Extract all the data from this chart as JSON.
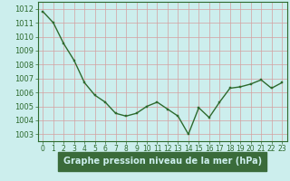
{
  "x": [
    0,
    1,
    2,
    3,
    4,
    5,
    6,
    7,
    8,
    9,
    10,
    11,
    12,
    13,
    14,
    15,
    16,
    17,
    18,
    19,
    20,
    21,
    22,
    23
  ],
  "y": [
    1011.8,
    1011.0,
    1009.5,
    1008.3,
    1006.7,
    1005.8,
    1005.3,
    1004.5,
    1004.3,
    1004.5,
    1005.0,
    1005.3,
    1004.8,
    1004.3,
    1003.0,
    1004.9,
    1004.2,
    1005.3,
    1006.3,
    1006.4,
    1006.6,
    1006.9,
    1006.3,
    1006.7
  ],
  "line_color": "#2d6a2d",
  "marker": "s",
  "marker_size": 2.0,
  "line_width": 1.0,
  "plot_bg_color": "#cceeed",
  "grid_color": "#d4a0a0",
  "label_color": "#2d6a2d",
  "ylim": [
    1002.5,
    1012.5
  ],
  "yticks": [
    1003,
    1004,
    1005,
    1006,
    1007,
    1008,
    1009,
    1010,
    1011,
    1012
  ],
  "xlim": [
    -0.5,
    23.5
  ],
  "xlabel": "Graphe pression niveau de la mer (hPa)",
  "xlabel_fontsize": 7,
  "tick_fontsize": 6,
  "fig_bg": "#cceeed",
  "xlabel_bg": "#3a6b3a",
  "xlabel_fg": "#cceeed"
}
